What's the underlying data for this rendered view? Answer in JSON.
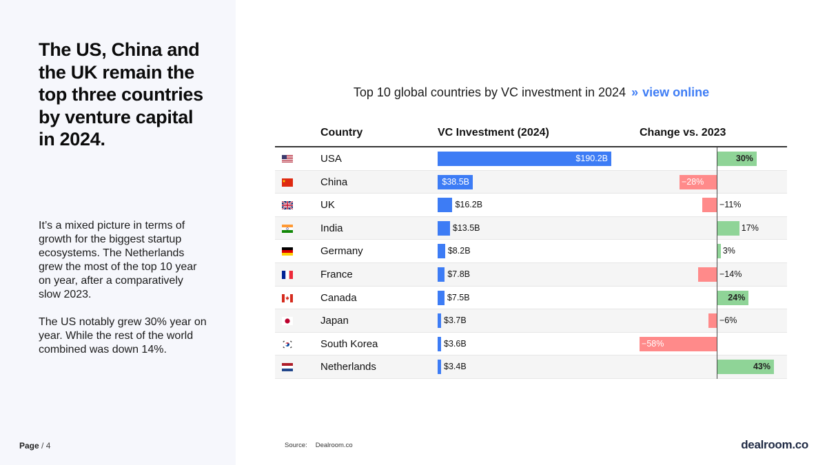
{
  "sidebar": {
    "headline": "The US, China and the UK remain the top three countries by venture capital in 2024.",
    "paragraph1": "It’s a mixed picture in terms of growth for the biggest startup ecosystems. The Netherlands grew the most of the top 10 year on year, after a comparatively slow 2023.",
    "paragraph2": "The US notably grew 30% year on year. While the rest of the world combined was down 14%."
  },
  "footer": {
    "page_label": "Page",
    "page_number": "/ 4",
    "source_label": "Source:",
    "source_value": "Dealroom.co",
    "logo": "dealroom.co"
  },
  "chart_header": {
    "title": "Top 10 global countries by VC investment in 2024",
    "separator": "»",
    "link": "view online"
  },
  "chart_data": {
    "type": "table",
    "title": "Top 10 global countries by VC investment in 2024",
    "columns": [
      "Country",
      "VC Investment (2024)",
      "Change vs. 2023"
    ],
    "rows": [
      {
        "country": "USA",
        "flag": "us-flag-icon",
        "investment": 190.2,
        "investment_label": "$190.2B",
        "change": 30,
        "change_label": "30%"
      },
      {
        "country": "China",
        "flag": "china-flag-icon",
        "investment": 38.5,
        "investment_label": "$38.5B",
        "change": -28,
        "change_label": "−28%"
      },
      {
        "country": "UK",
        "flag": "uk-flag-icon",
        "investment": 16.2,
        "investment_label": "$16.2B",
        "change": -11,
        "change_label": "−11%"
      },
      {
        "country": "India",
        "flag": "india-flag-icon",
        "investment": 13.5,
        "investment_label": "$13.5B",
        "change": 17,
        "change_label": "17%"
      },
      {
        "country": "Germany",
        "flag": "germany-flag-icon",
        "investment": 8.2,
        "investment_label": "$8.2B",
        "change": 3,
        "change_label": "3%"
      },
      {
        "country": "France",
        "flag": "france-flag-icon",
        "investment": 7.8,
        "investment_label": "$7.8B",
        "change": -14,
        "change_label": "−14%"
      },
      {
        "country": "Canada",
        "flag": "canada-flag-icon",
        "investment": 7.5,
        "investment_label": "$7.5B",
        "change": 24,
        "change_label": "24%"
      },
      {
        "country": "Japan",
        "flag": "japan-flag-icon",
        "investment": 3.7,
        "investment_label": "$3.7B",
        "change": -6,
        "change_label": "−6%"
      },
      {
        "country": "South Korea",
        "flag": "south-korea-flag-icon",
        "investment": 3.6,
        "investment_label": "$3.6B",
        "change": -58,
        "change_label": "−58%"
      },
      {
        "country": "Netherlands",
        "flag": "netherlands-flag-icon",
        "investment": 3.4,
        "investment_label": "$3.4B",
        "change": 43,
        "change_label": "43%"
      }
    ],
    "colors": {
      "investment": "#3d7cf5",
      "positive": "#8fd497",
      "negative": "#ff8a8a"
    }
  }
}
